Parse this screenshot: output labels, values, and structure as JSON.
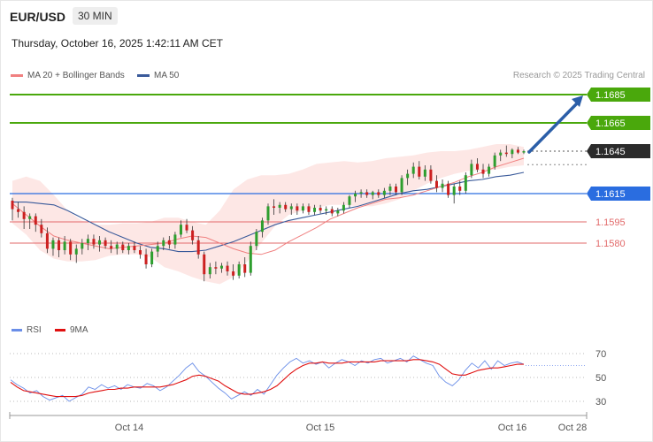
{
  "header": {
    "symbol": "EUR/USD",
    "timeframe": "30 MIN",
    "datetime": "Thursday, October 16, 2025 1:42:11 AM CET"
  },
  "legend": {
    "ma20_label": "MA 20 + Bollinger Bands",
    "ma50_label": "MA 50",
    "credit": "Research © 2025 Trading Central"
  },
  "colors": {
    "ma20": "#f08080",
    "ma50": "#3a5a9a",
    "bollinger_fill": "#fde3e1",
    "target_green": "#4aa80c",
    "pivot_blue": "#2a6de0",
    "support_red": "#e26a6a",
    "candle_up": "#2e9e2e",
    "candle_down": "#cc2020",
    "arrow": "#2b5ea8",
    "rsi": "#6a8ee8",
    "rsi_signal": "#e01010"
  },
  "chart_data": [
    {
      "type": "candlestick",
      "title": "",
      "ylim": [
        1.1555,
        1.17
      ],
      "x_ticks": [
        "Oct 14",
        "Oct 15",
        "Oct 16",
        "Oct 28"
      ],
      "levels": [
        {
          "value": 1.1685,
          "label": "1.1685",
          "role": "resistance-target",
          "style": "green-badge"
        },
        {
          "value": 1.1665,
          "label": "1.1665",
          "role": "resistance-target",
          "style": "green-badge"
        },
        {
          "value": 1.1645,
          "label": "1.1645",
          "role": "current-price",
          "style": "dark-badge"
        },
        {
          "value": 1.1615,
          "label": "1.1615",
          "role": "pivot",
          "style": "blue-badge"
        },
        {
          "value": 1.1595,
          "label": "1.1595",
          "role": "support",
          "style": "red-text"
        },
        {
          "value": 1.158,
          "label": "1.1580",
          "role": "support",
          "style": "red-text"
        }
      ],
      "arrow": {
        "from": 1.1645,
        "to": 1.1685,
        "direction": "up"
      },
      "candles": [
        [
          1.161,
          1.1612,
          1.1596,
          1.1604
        ],
        [
          1.1604,
          1.1609,
          1.1598,
          1.1602
        ],
        [
          1.1602,
          1.1606,
          1.159,
          1.1597
        ],
        [
          1.1597,
          1.1601,
          1.159,
          1.1599
        ],
        [
          1.1599,
          1.1601,
          1.1588,
          1.1593
        ],
        [
          1.1593,
          1.1597,
          1.1584,
          1.1587
        ],
        [
          1.1587,
          1.1591,
          1.1573,
          1.1576
        ],
        [
          1.1576,
          1.1584,
          1.1571,
          1.1582
        ],
        [
          1.1582,
          1.1584,
          1.157,
          1.1575
        ],
        [
          1.1575,
          1.1585,
          1.1572,
          1.1581
        ],
        [
          1.1581,
          1.1583,
          1.1568,
          1.1572
        ],
        [
          1.1572,
          1.1579,
          1.1566,
          1.1576
        ],
        [
          1.1576,
          1.1583,
          1.1572,
          1.158
        ],
        [
          1.158,
          1.1586,
          1.1575,
          1.1583
        ],
        [
          1.1583,
          1.1586,
          1.1576,
          1.1579
        ],
        [
          1.1579,
          1.1585,
          1.1574,
          1.1582
        ],
        [
          1.1582,
          1.1584,
          1.1576,
          1.1578
        ],
        [
          1.1578,
          1.1582,
          1.1573,
          1.1576
        ],
        [
          1.1576,
          1.1581,
          1.1572,
          1.1579
        ],
        [
          1.1579,
          1.1581,
          1.1573,
          1.1575
        ],
        [
          1.1575,
          1.158,
          1.1572,
          1.1578
        ],
        [
          1.1578,
          1.1581,
          1.1573,
          1.1575
        ],
        [
          1.1575,
          1.1578,
          1.1569,
          1.1572
        ],
        [
          1.1572,
          1.1576,
          1.1562,
          1.1565
        ],
        [
          1.1565,
          1.1576,
          1.1563,
          1.1574
        ],
        [
          1.1574,
          1.1581,
          1.157,
          1.1578
        ],
        [
          1.1578,
          1.1584,
          1.1575,
          1.1582
        ],
        [
          1.1582,
          1.1585,
          1.1576,
          1.1579
        ],
        [
          1.1579,
          1.1588,
          1.1576,
          1.1586
        ],
        [
          1.1586,
          1.1596,
          1.1584,
          1.1593
        ],
        [
          1.1593,
          1.1597,
          1.1587,
          1.1589
        ],
        [
          1.1589,
          1.1592,
          1.1579,
          1.1582
        ],
        [
          1.1582,
          1.1585,
          1.1569,
          1.1572
        ],
        [
          1.1572,
          1.1574,
          1.1553,
          1.1558
        ],
        [
          1.1558,
          1.1566,
          1.1555,
          1.1563
        ],
        [
          1.1563,
          1.1567,
          1.1558,
          1.1562
        ],
        [
          1.1562,
          1.1566,
          1.1559,
          1.1564
        ],
        [
          1.1564,
          1.1567,
          1.1557,
          1.156
        ],
        [
          1.156,
          1.1565,
          1.1554,
          1.1557
        ],
        [
          1.1557,
          1.1567,
          1.1555,
          1.1565
        ],
        [
          1.1565,
          1.157,
          1.1556,
          1.1559
        ],
        [
          1.1559,
          1.1581,
          1.1557,
          1.1578
        ],
        [
          1.1578,
          1.159,
          1.1575,
          1.1588
        ],
        [
          1.1588,
          1.1598,
          1.1584,
          1.1596
        ],
        [
          1.1596,
          1.1608,
          1.1593,
          1.1606
        ],
        [
          1.1606,
          1.1611,
          1.16,
          1.1605
        ],
        [
          1.1605,
          1.1609,
          1.1601,
          1.1607
        ],
        [
          1.1607,
          1.1609,
          1.1602,
          1.1604
        ],
        [
          1.1604,
          1.1608,
          1.16,
          1.1606
        ],
        [
          1.1606,
          1.1608,
          1.16,
          1.1603
        ],
        [
          1.1603,
          1.1608,
          1.1601,
          1.1606
        ],
        [
          1.1606,
          1.1608,
          1.16,
          1.1602
        ],
        [
          1.1602,
          1.1607,
          1.16,
          1.1605
        ],
        [
          1.1605,
          1.1607,
          1.1601,
          1.1603
        ],
        [
          1.1603,
          1.1606,
          1.16,
          1.1604
        ],
        [
          1.1604,
          1.1606,
          1.1599,
          1.1601
        ],
        [
          1.1601,
          1.1605,
          1.1599,
          1.1603
        ],
        [
          1.1603,
          1.1609,
          1.1601,
          1.1607
        ],
        [
          1.1607,
          1.1614,
          1.1605,
          1.1613
        ],
        [
          1.1613,
          1.1617,
          1.1609,
          1.1615
        ],
        [
          1.1615,
          1.1618,
          1.1612,
          1.1616
        ],
        [
          1.1616,
          1.1618,
          1.1612,
          1.1614
        ],
        [
          1.1614,
          1.1617,
          1.1611,
          1.1616
        ],
        [
          1.1616,
          1.1618,
          1.1612,
          1.1614
        ],
        [
          1.1614,
          1.1619,
          1.1612,
          1.1617
        ],
        [
          1.1617,
          1.1622,
          1.1614,
          1.162
        ],
        [
          1.162,
          1.1622,
          1.1614,
          1.1616
        ],
        [
          1.1616,
          1.1628,
          1.1614,
          1.1626
        ],
        [
          1.1626,
          1.1632,
          1.1621,
          1.1629
        ],
        [
          1.1629,
          1.1637,
          1.1626,
          1.1634
        ],
        [
          1.1634,
          1.1638,
          1.1625,
          1.1627
        ],
        [
          1.1627,
          1.1635,
          1.1624,
          1.1632
        ],
        [
          1.1632,
          1.1635,
          1.1622,
          1.1624
        ],
        [
          1.1624,
          1.1628,
          1.1616,
          1.1619
        ],
        [
          1.1619,
          1.1625,
          1.1616,
          1.1622
        ],
        [
          1.1622,
          1.1624,
          1.1612,
          1.1614
        ],
        [
          1.1614,
          1.1622,
          1.1608,
          1.162
        ],
        [
          1.162,
          1.1624,
          1.1614,
          1.1617
        ],
        [
          1.1617,
          1.163,
          1.1615,
          1.1628
        ],
        [
          1.1628,
          1.1639,
          1.1626,
          1.1636
        ],
        [
          1.1636,
          1.164,
          1.163,
          1.1632
        ],
        [
          1.1632,
          1.1636,
          1.1626,
          1.1629
        ],
        [
          1.1629,
          1.1636,
          1.1627,
          1.1634
        ],
        [
          1.1634,
          1.1644,
          1.1632,
          1.1642
        ],
        [
          1.1642,
          1.1646,
          1.1638,
          1.1644
        ],
        [
          1.1644,
          1.1649,
          1.1641,
          1.1643
        ],
        [
          1.1643,
          1.1647,
          1.164,
          1.1646
        ],
        [
          1.1646,
          1.1648,
          1.1643,
          1.1644
        ],
        [
          1.1644,
          1.1646,
          1.1643,
          1.1645
        ]
      ],
      "ma20": [
        1.1608,
        1.16,
        1.1592,
        1.1585,
        1.1582,
        1.158,
        1.1578,
        1.1576,
        1.1577,
        1.1578,
        1.1579,
        1.158,
        1.1583,
        1.1585,
        1.1584,
        1.158,
        1.1576,
        1.1573,
        1.1572,
        1.1575,
        1.1581,
        1.1586,
        1.1591,
        1.1597,
        1.1601,
        1.1605,
        1.1608,
        1.1611,
        1.1612,
        1.1614,
        1.1617,
        1.162,
        1.1623,
        1.1627,
        1.163,
        1.1634,
        1.1637,
        1.164
      ],
      "ma50": [
        1.1609,
        1.1609,
        1.1608,
        1.1607,
        1.1603,
        1.1598,
        1.1593,
        1.1588,
        1.1584,
        1.158,
        1.1577,
        1.1576,
        1.1574,
        1.1574,
        1.1575,
        1.1578,
        1.1581,
        1.1585,
        1.1589,
        1.1593,
        1.1596,
        1.1598,
        1.16,
        1.1602,
        1.1604,
        1.1606,
        1.1609,
        1.1612,
        1.1615,
        1.1617,
        1.1618,
        1.162,
        1.1622,
        1.1624,
        1.1625,
        1.1627,
        1.1628,
        1.163
      ],
      "bb_upper": [
        1.1624,
        1.1627,
        1.1624,
        1.1614,
        1.1603,
        1.1596,
        1.1593,
        1.1593,
        1.1594,
        1.1594,
        1.1595,
        1.1598,
        1.1598,
        1.1595,
        1.1593,
        1.1603,
        1.1618,
        1.1625,
        1.1628,
        1.1628,
        1.1629,
        1.1632,
        1.1636,
        1.1637,
        1.1638,
        1.1637,
        1.1638,
        1.164,
        1.1641,
        1.1642,
        1.1644,
        1.1645,
        1.1645,
        1.1646,
        1.1648,
        1.165,
        1.165,
        1.1648
      ],
      "bb_lower": [
        1.1594,
        1.1586,
        1.1575,
        1.1569,
        1.1567,
        1.1567,
        1.1568,
        1.1571,
        1.1572,
        1.1572,
        1.157,
        1.1563,
        1.156,
        1.1556,
        1.1553,
        1.1551,
        1.1556,
        1.1567,
        1.158,
        1.1592,
        1.16,
        1.1603,
        1.1605,
        1.1607,
        1.1607,
        1.1606,
        1.1606,
        1.1608,
        1.1611,
        1.1617,
        1.1622,
        1.1626,
        1.1629,
        1.1631,
        1.1631,
        1.1632,
        1.1634,
        1.1635
      ]
    },
    {
      "type": "line",
      "title": "",
      "series_names": [
        "RSI",
        "9MA"
      ],
      "ylim": [
        25,
        75
      ],
      "y_ticks": [
        "70",
        "50",
        "30"
      ],
      "rsi": [
        48,
        44,
        41,
        37,
        39,
        34,
        31,
        33,
        35,
        30,
        33,
        36,
        42,
        40,
        44,
        41,
        43,
        40,
        44,
        42,
        41,
        45,
        43,
        39,
        42,
        47,
        52,
        58,
        62,
        55,
        51,
        46,
        41,
        37,
        32,
        35,
        38,
        35,
        40,
        36,
        44,
        52,
        58,
        63,
        66,
        62,
        64,
        61,
        63,
        58,
        62,
        65,
        63,
        60,
        64,
        62,
        65,
        66,
        62,
        64,
        66,
        63,
        68,
        65,
        62,
        60,
        51,
        46,
        43,
        48,
        56,
        62,
        58,
        64,
        57,
        64,
        60,
        62,
        63,
        61
      ],
      "rsi_ma": [
        46,
        42,
        39,
        38,
        37,
        36,
        35,
        34,
        34,
        34,
        34,
        35,
        37,
        38,
        39,
        40,
        40,
        41,
        41,
        42,
        42,
        42,
        42,
        42,
        43,
        44,
        46,
        48,
        51,
        52,
        51,
        49,
        47,
        43,
        40,
        37,
        36,
        36,
        37,
        38,
        40,
        43,
        48,
        53,
        57,
        60,
        62,
        62,
        63,
        62,
        62,
        62,
        63,
        63,
        63,
        63,
        63,
        64,
        64,
        64,
        64,
        64,
        65,
        65,
        64,
        63,
        61,
        57,
        53,
        52,
        52,
        54,
        56,
        57,
        58,
        58,
        59,
        60,
        61,
        61
      ]
    }
  ]
}
